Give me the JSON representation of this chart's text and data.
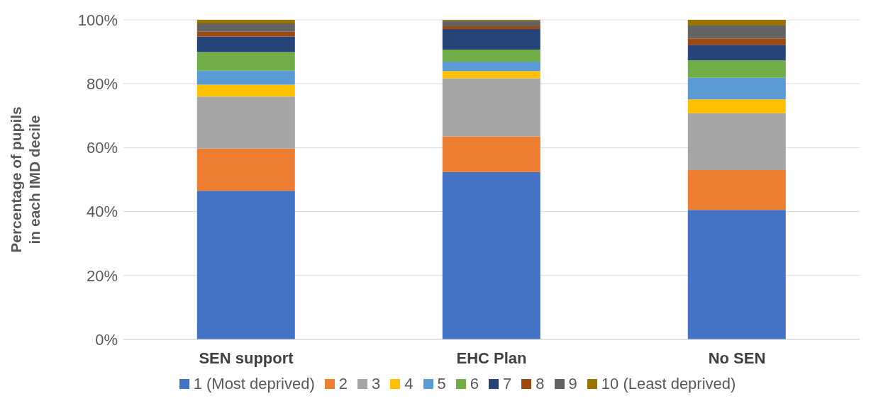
{
  "chart_data": {
    "type": "bar",
    "stacked": true,
    "ylabel": "Percentage of pupils in each IMD decile",
    "categories": [
      "SEN support",
      "EHC Plan",
      "No SEN"
    ],
    "series": [
      {
        "name": "1 (Most deprived)",
        "color": "#4472c4",
        "values": [
          46.5,
          52.4,
          40.5
        ]
      },
      {
        "name": "2",
        "color": "#ed7d31",
        "values": [
          13.2,
          11.1,
          12.5
        ]
      },
      {
        "name": "3",
        "color": "#a5a5a5",
        "values": [
          16.3,
          18.2,
          17.8
        ]
      },
      {
        "name": "4",
        "color": "#ffc000",
        "values": [
          3.7,
          2.3,
          4.3
        ]
      },
      {
        "name": "5",
        "color": "#5b9bd5",
        "values": [
          4.4,
          2.9,
          6.8
        ]
      },
      {
        "name": "6",
        "color": "#70ad47",
        "values": [
          5.8,
          3.8,
          5.4
        ]
      },
      {
        "name": "7",
        "color": "#264478",
        "values": [
          4.9,
          6.4,
          4.9
        ]
      },
      {
        "name": "8",
        "color": "#9e480e",
        "values": [
          1.5,
          0.9,
          2.0
        ]
      },
      {
        "name": "9",
        "color": "#636363",
        "values": [
          2.6,
          1.7,
          4.0
        ]
      },
      {
        "name": "10 (Least deprived)",
        "color": "#997300",
        "values": [
          1.1,
          0.3,
          1.8
        ]
      }
    ],
    "ylim": [
      0,
      100
    ],
    "yticks": [
      {
        "value": 0,
        "label": "0%"
      },
      {
        "value": 20,
        "label": "20%"
      },
      {
        "value": 40,
        "label": "40%"
      },
      {
        "value": 60,
        "label": "60%"
      },
      {
        "value": 80,
        "label": "80%"
      },
      {
        "value": 100,
        "label": "100%"
      }
    ],
    "grid": "y",
    "legend": "bottom"
  }
}
